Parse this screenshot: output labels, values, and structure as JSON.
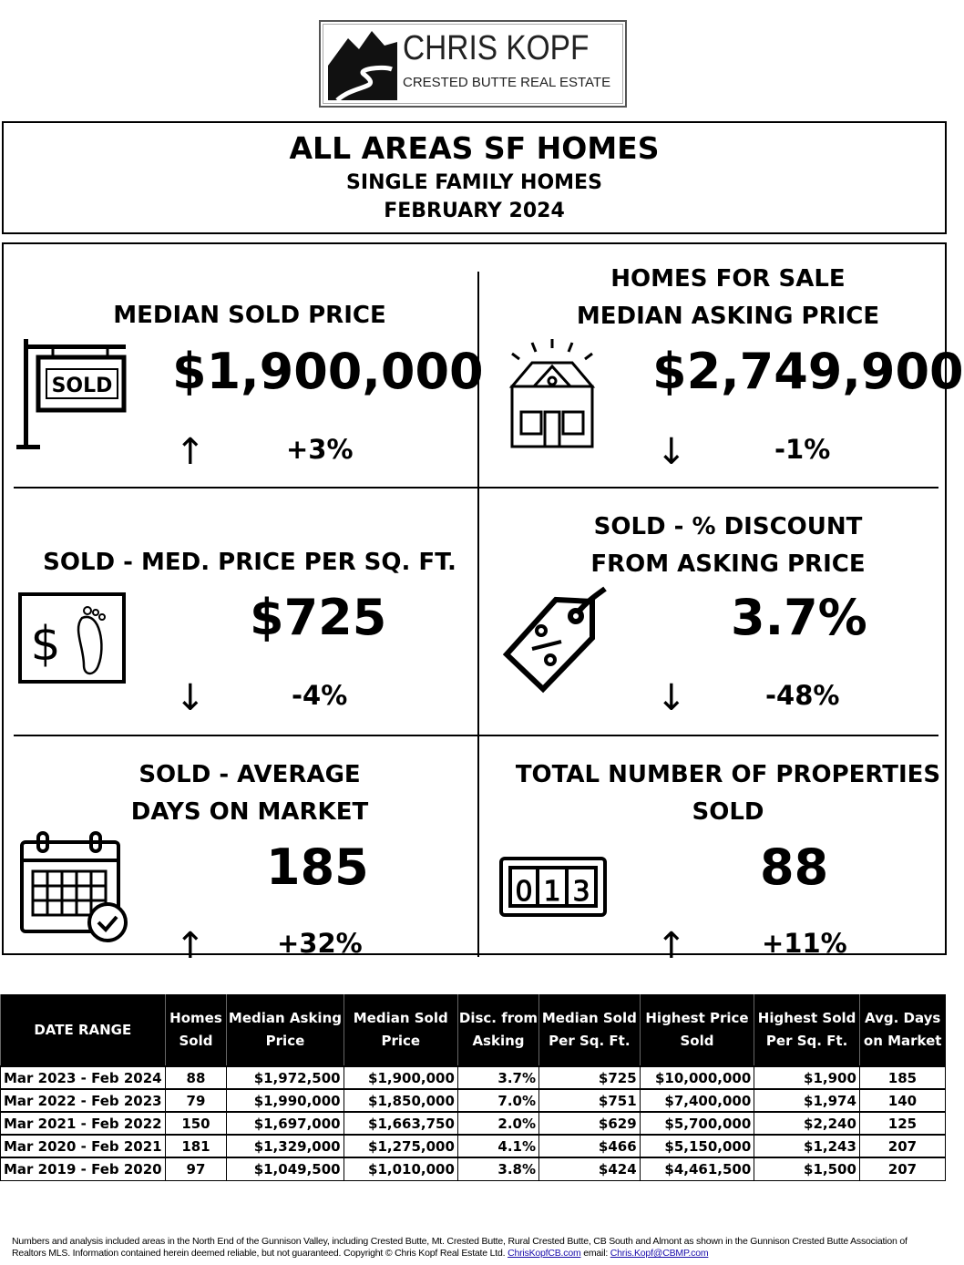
{
  "logo": {
    "name": "CHRIS KOPF",
    "subtitle": "CRESTED BUTTE REAL ESTATE"
  },
  "header": {
    "title": "ALL AREAS SF HOMES",
    "subtitle": "SINGLE FAMILY HOMES",
    "period": "FEBRUARY 2024"
  },
  "metrics": [
    {
      "label1": "MEDIAN SOLD PRICE",
      "label2": "",
      "value": "$1,900,000",
      "change": "+3%",
      "direction": "up",
      "icon": "sold-sign-icon"
    },
    {
      "label1": "HOMES FOR SALE",
      "label2": "MEDIAN ASKING PRICE",
      "value": "$2,749,900",
      "change": "-1%",
      "direction": "down",
      "icon": "house-icon"
    },
    {
      "label1": "SOLD - MED. PRICE PER SQ. FT.",
      "label2": "",
      "value": "$725",
      "change": "-4%",
      "direction": "down",
      "icon": "dollar-footprint-icon"
    },
    {
      "label1": "SOLD - % DISCOUNT",
      "label2": "FROM ASKING PRICE",
      "value": "3.7%",
      "change": "-48%",
      "direction": "down",
      "icon": "discount-tag-icon"
    },
    {
      "label1": "SOLD - AVERAGE",
      "label2": "DAYS ON MARKET",
      "value": "185",
      "change": "+32%",
      "direction": "up",
      "icon": "calendar-check-icon"
    },
    {
      "label1": "TOTAL NUMBER OF PROPERTIES",
      "label2": "SOLD",
      "value": "88",
      "change": "+11%",
      "direction": "up",
      "icon": "counter-icon"
    }
  ],
  "arrows": {
    "up": "↑",
    "down": "↓"
  },
  "table": {
    "headers": [
      "DATE RANGE",
      "Homes Sold",
      "Median Asking Price",
      "Median Sold Price",
      "Disc. from Asking",
      "Median Sold Per Sq. Ft.",
      "Highest Price Sold",
      "Highest Sold Per Sq. Ft.",
      "Avg. Days on Market"
    ],
    "rows": [
      [
        "Mar 2023 - Feb 2024",
        "88",
        "$1,972,500",
        "$1,900,000",
        "3.7%",
        "$725",
        "$10,000,000",
        "$1,900",
        "185"
      ],
      [
        "Mar 2022 - Feb 2023",
        "79",
        "$1,990,000",
        "$1,850,000",
        "7.0%",
        "$751",
        "$7,400,000",
        "$1,974",
        "140"
      ],
      [
        "Mar 2021 - Feb 2022",
        "150",
        "$1,697,000",
        "$1,663,750",
        "2.0%",
        "$629",
        "$5,700,000",
        "$2,240",
        "125"
      ],
      [
        "Mar 2020 - Feb 2021",
        "181",
        "$1,329,000",
        "$1,275,000",
        "4.1%",
        "$466",
        "$5,150,000",
        "$1,243",
        "207"
      ],
      [
        "Mar 2019 - Feb 2020",
        "97",
        "$1,049,500",
        "$1,010,000",
        "3.8%",
        "$424",
        "$4,461,500",
        "$1,500",
        "207"
      ]
    ]
  },
  "footer": {
    "text": "Numbers and analysis included areas in the North End of the Gunnison Valley, including Crested Butte, Mt. Crested Butte, Rural Crested Butte, CB South and Almont as shown in the Gunnison Crested Butte Association of Realtors MLS. Information contained herein deemed reliable, but not guaranteed. Copyright © Chris Kopf Real Estate Ltd.",
    "link1": "ChrisKopfCB.com",
    "email_label": "email:",
    "link2": "Chris.Kopf@CBMP.com"
  }
}
